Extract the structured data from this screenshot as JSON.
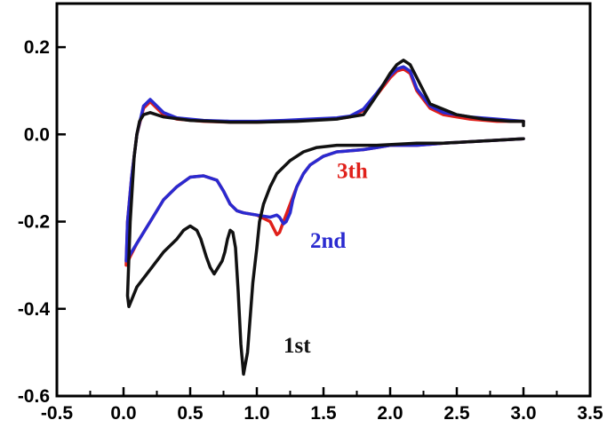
{
  "chart_data": {
    "type": "line",
    "title": "",
    "xlabel": "",
    "ylabel": "",
    "xlim": [
      -0.5,
      3.5
    ],
    "ylim": [
      -0.6,
      0.3
    ],
    "x_ticks": [
      -0.5,
      0.0,
      0.5,
      1.0,
      1.5,
      2.0,
      2.5,
      3.0,
      3.5
    ],
    "x_tick_labels": [
      "-0.5",
      "0.0",
      "0.5",
      "1.0",
      "1.5",
      "2.0",
      "2.5",
      "3.0",
      "3.5"
    ],
    "y_ticks": [
      0.2,
      0.0,
      -0.2,
      -0.4,
      -0.6
    ],
    "y_tick_labels": [
      "0.2",
      "0.0",
      "-0.2",
      "-0.4",
      "-0.6"
    ],
    "grid": false,
    "series": [
      {
        "name": "3th",
        "color": "#e0201a",
        "x": [
          3.0,
          2.7,
          2.4,
          2.2,
          2.0,
          1.9,
          1.8,
          1.6,
          1.5,
          1.45,
          1.4,
          1.35,
          1.3,
          1.25,
          1.2,
          1.17,
          1.15,
          1.1,
          1.0,
          0.9,
          0.85,
          0.8,
          0.75,
          0.7,
          0.6,
          0.5,
          0.4,
          0.3,
          0.2,
          0.1,
          0.05,
          0.02,
          0.03,
          0.06,
          0.1,
          0.15,
          0.2,
          0.25,
          0.3,
          0.4,
          0.6,
          0.8,
          1.0,
          1.2,
          1.4,
          1.6,
          1.7,
          1.8,
          1.9,
          2.0,
          2.05,
          2.1,
          2.15,
          2.2,
          2.3,
          2.4,
          2.6,
          2.8,
          3.0
        ],
        "y": [
          -0.01,
          -0.015,
          -0.02,
          -0.025,
          -0.025,
          -0.03,
          -0.035,
          -0.04,
          -0.05,
          -0.06,
          -0.07,
          -0.09,
          -0.12,
          -0.16,
          -0.2,
          -0.225,
          -0.23,
          -0.2,
          -0.185,
          -0.18,
          -0.175,
          -0.16,
          -0.13,
          -0.105,
          -0.095,
          -0.098,
          -0.12,
          -0.15,
          -0.2,
          -0.25,
          -0.28,
          -0.3,
          -0.2,
          -0.1,
          0.0,
          0.06,
          0.075,
          0.06,
          0.045,
          0.035,
          0.03,
          0.028,
          0.028,
          0.03,
          0.033,
          0.036,
          0.04,
          0.055,
          0.09,
          0.13,
          0.145,
          0.15,
          0.14,
          0.1,
          0.06,
          0.045,
          0.035,
          0.03,
          0.03
        ]
      },
      {
        "name": "2nd",
        "color": "#2a2ad0",
        "x": [
          3.0,
          2.7,
          2.4,
          2.2,
          2.0,
          1.9,
          1.8,
          1.6,
          1.5,
          1.45,
          1.4,
          1.35,
          1.3,
          1.27,
          1.25,
          1.22,
          1.2,
          1.17,
          1.15,
          1.1,
          1.0,
          0.9,
          0.85,
          0.8,
          0.75,
          0.7,
          0.6,
          0.5,
          0.4,
          0.3,
          0.2,
          0.1,
          0.05,
          0.02,
          0.03,
          0.06,
          0.1,
          0.15,
          0.2,
          0.25,
          0.3,
          0.4,
          0.6,
          0.8,
          1.0,
          1.2,
          1.4,
          1.6,
          1.7,
          1.8,
          1.9,
          2.0,
          2.05,
          2.1,
          2.15,
          2.2,
          2.3,
          2.4,
          2.6,
          2.8,
          3.0
        ],
        "y": [
          -0.01,
          -0.015,
          -0.02,
          -0.025,
          -0.025,
          -0.03,
          -0.035,
          -0.04,
          -0.05,
          -0.06,
          -0.07,
          -0.09,
          -0.12,
          -0.15,
          -0.18,
          -0.2,
          -0.205,
          -0.19,
          -0.185,
          -0.19,
          -0.185,
          -0.18,
          -0.175,
          -0.16,
          -0.13,
          -0.105,
          -0.095,
          -0.098,
          -0.12,
          -0.15,
          -0.2,
          -0.25,
          -0.275,
          -0.29,
          -0.2,
          -0.1,
          0.0,
          0.065,
          0.08,
          0.065,
          0.05,
          0.038,
          0.032,
          0.03,
          0.03,
          0.032,
          0.035,
          0.038,
          0.042,
          0.058,
          0.095,
          0.135,
          0.15,
          0.155,
          0.145,
          0.105,
          0.065,
          0.05,
          0.04,
          0.035,
          0.03
        ]
      },
      {
        "name": "1st",
        "color": "#111111",
        "x": [
          3.0,
          2.7,
          2.4,
          2.2,
          1.9,
          1.6,
          1.45,
          1.35,
          1.25,
          1.15,
          1.1,
          1.05,
          1.02,
          1.0,
          0.97,
          0.95,
          0.93,
          0.9,
          0.88,
          0.86,
          0.84,
          0.82,
          0.8,
          0.78,
          0.76,
          0.74,
          0.72,
          0.7,
          0.68,
          0.65,
          0.62,
          0.6,
          0.58,
          0.55,
          0.5,
          0.45,
          0.4,
          0.3,
          0.2,
          0.1,
          0.06,
          0.04,
          0.03,
          0.05,
          0.08,
          0.1,
          0.12,
          0.15,
          0.2,
          0.3,
          0.5,
          0.8,
          1.0,
          1.3,
          1.6,
          1.8,
          1.9,
          2.0,
          2.05,
          2.1,
          2.15,
          2.2,
          2.3,
          2.5,
          2.7,
          2.9,
          3.0,
          3.0
        ],
        "y": [
          -0.01,
          -0.015,
          -0.02,
          -0.02,
          -0.025,
          -0.025,
          -0.03,
          -0.04,
          -0.06,
          -0.09,
          -0.12,
          -0.16,
          -0.2,
          -0.26,
          -0.34,
          -0.42,
          -0.5,
          -0.55,
          -0.48,
          -0.36,
          -0.26,
          -0.225,
          -0.22,
          -0.24,
          -0.27,
          -0.29,
          -0.3,
          -0.31,
          -0.32,
          -0.305,
          -0.28,
          -0.26,
          -0.24,
          -0.22,
          -0.21,
          -0.22,
          -0.24,
          -0.27,
          -0.31,
          -0.35,
          -0.38,
          -0.395,
          -0.37,
          -0.2,
          -0.05,
          0.0,
          0.03,
          0.045,
          0.05,
          0.04,
          0.032,
          0.028,
          0.028,
          0.03,
          0.035,
          0.045,
          0.09,
          0.14,
          0.16,
          0.17,
          0.16,
          0.13,
          0.07,
          0.045,
          0.035,
          0.03,
          0.03,
          0.02
        ]
      }
    ],
    "annotations": [
      {
        "text": "3th",
        "color": "#e0201a",
        "x": 1.6,
        "y": -0.1
      },
      {
        "text": "2nd",
        "color": "#2a2ad0",
        "x": 1.4,
        "y": -0.26
      },
      {
        "text": "1st",
        "color": "#111111",
        "x": 1.2,
        "y": -0.5
      }
    ]
  }
}
